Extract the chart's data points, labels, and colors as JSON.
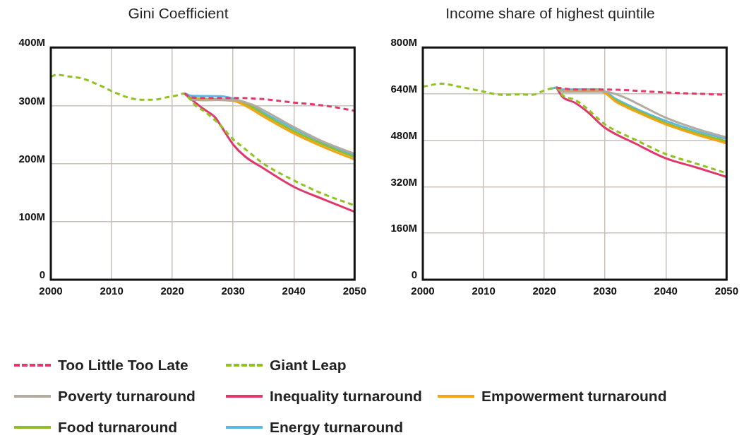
{
  "chart_data": [
    {
      "type": "line",
      "title": "Gini Coefficient",
      "legend": "bottom",
      "grid": true,
      "marker": "none",
      "xlim": [
        2000,
        2050
      ],
      "xticks": [
        2000,
        2010,
        2020,
        2030,
        2040,
        2050
      ],
      "ylim": [
        0,
        400
      ],
      "yticks": [
        0,
        {
          "value": 100,
          "label": "100M"
        },
        {
          "value": 200,
          "label": "200M"
        },
        {
          "value": 300,
          "label": "300M"
        },
        {
          "value": 400,
          "label": "400M"
        }
      ],
      "series": [
        {
          "name": "Too Little Too Late",
          "color": "#e5386b",
          "line_style": "dashed",
          "x": [
            2022,
            2023,
            2025,
            2030,
            2035,
            2040,
            2045,
            2050
          ],
          "values": [
            321,
            314,
            313,
            313,
            311,
            305,
            300,
            291
          ]
        },
        {
          "name": "Giant Leap",
          "color": "#8fc31f",
          "line_style": "dashed",
          "x": [
            2000,
            2001,
            2003,
            2005,
            2008,
            2010,
            2013,
            2015,
            2017,
            2019,
            2021,
            2022,
            2023,
            2024,
            2025,
            2026,
            2028,
            2030,
            2032,
            2035,
            2040,
            2045,
            2050
          ],
          "values": [
            350,
            353,
            350,
            347,
            335,
            325,
            313,
            310,
            310,
            314,
            318,
            321,
            310,
            298,
            292,
            284,
            265,
            242,
            225,
            200,
            171,
            147,
            128
          ]
        },
        {
          "name": "Poverty turnaround",
          "color": "#b3aba0",
          "line_style": "solid",
          "x": [
            2022,
            2023,
            2025,
            2030,
            2033,
            2035,
            2040,
            2045,
            2050
          ],
          "values": [
            321,
            311,
            309,
            310,
            302,
            292,
            263,
            237,
            217
          ]
        },
        {
          "name": "Inequality turnaround",
          "color": "#e0386b",
          "line_style": "solid",
          "x": [
            2022,
            2023,
            2025,
            2027,
            2028,
            2030,
            2032,
            2035,
            2040,
            2045,
            2050
          ],
          "values": [
            321,
            312,
            295,
            280,
            265,
            233,
            212,
            192,
            160,
            138,
            117
          ]
        },
        {
          "name": "Empowerment turnaround",
          "color": "#f5a314",
          "line_style": "solid",
          "x": [
            2022,
            2023,
            2030,
            2033,
            2035,
            2040,
            2045,
            2050
          ],
          "values": [
            321,
            313,
            308,
            294,
            281,
            252,
            228,
            207
          ]
        },
        {
          "name": "Food turnaround",
          "color": "#8fbe2a",
          "line_style": "solid",
          "x": [
            2022,
            2023,
            2030,
            2033,
            2035,
            2040,
            2045,
            2050
          ],
          "values": [
            321,
            313,
            310,
            298,
            285,
            256,
            232,
            211
          ]
        },
        {
          "name": "Energy turnaround",
          "color": "#5ab8e6",
          "line_style": "solid",
          "x": [
            2022,
            2023,
            2028,
            2030,
            2033,
            2035,
            2040,
            2045,
            2050
          ],
          "values": [
            321,
            317,
            316,
            312,
            300,
            288,
            260,
            235,
            214
          ]
        }
      ]
    },
    {
      "type": "line",
      "title": "Income share of highest quintile",
      "grid": true,
      "marker": "none",
      "xlim": [
        2000,
        2050
      ],
      "xticks": [
        2000,
        2010,
        2020,
        2030,
        2040,
        2050
      ],
      "ylim": [
        0,
        800
      ],
      "yticks": [
        0,
        {
          "value": 160,
          "label": "160M"
        },
        {
          "value": 320,
          "label": "320M"
        },
        {
          "value": 480,
          "label": "480M"
        },
        {
          "value": 640,
          "label": "640M"
        },
        {
          "value": 800,
          "label": "800M"
        }
      ],
      "series": [
        {
          "color": "#e5386b",
          "line_style": "dashed",
          "x": [
            2022,
            2025,
            2030,
            2040,
            2050
          ],
          "values": [
            662,
            655,
            655,
            645,
            637
          ]
        },
        {
          "color": "#8fc31f",
          "line_style": "dashed",
          "x": [
            2000,
            2003,
            2006,
            2010,
            2013,
            2016,
            2018,
            2020,
            2022,
            2023,
            2025,
            2027,
            2030,
            2035,
            2040,
            2045,
            2050
          ],
          "values": [
            665,
            675,
            665,
            648,
            637,
            638,
            637,
            652,
            662,
            635,
            620,
            590,
            535,
            482,
            433,
            400,
            367
          ]
        },
        {
          "color": "#b3aba0",
          "line_style": "solid",
          "x": [
            2022,
            2023,
            2030,
            2033,
            2035,
            2040,
            2045,
            2050
          ],
          "values": [
            662,
            647,
            647,
            630,
            610,
            558,
            520,
            490
          ]
        },
        {
          "color": "#e0386b",
          "line_style": "solid",
          "x": [
            2022,
            2023,
            2025,
            2027,
            2030,
            2035,
            2040,
            2045,
            2050
          ],
          "values": [
            662,
            630,
            610,
            580,
            523,
            469,
            418,
            387,
            354
          ]
        },
        {
          "color": "#f5a314",
          "line_style": "solid",
          "x": [
            2022,
            2023,
            2029,
            2032,
            2035,
            2040,
            2045,
            2050
          ],
          "values": [
            662,
            650,
            652,
            610,
            580,
            535,
            500,
            470
          ]
        },
        {
          "color": "#8fbe2a",
          "line_style": "solid",
          "x": [
            2022,
            2023,
            2029,
            2032,
            2035,
            2040,
            2045,
            2050
          ],
          "values": [
            662,
            648,
            650,
            615,
            585,
            540,
            505,
            477
          ]
        },
        {
          "color": "#5ab8e6",
          "line_style": "solid",
          "x": [
            2021,
            2022,
            2023,
            2029,
            2032,
            2035,
            2040,
            2045,
            2050
          ],
          "values": [
            657,
            662,
            655,
            656,
            620,
            590,
            547,
            512,
            485
          ]
        }
      ]
    }
  ]
}
